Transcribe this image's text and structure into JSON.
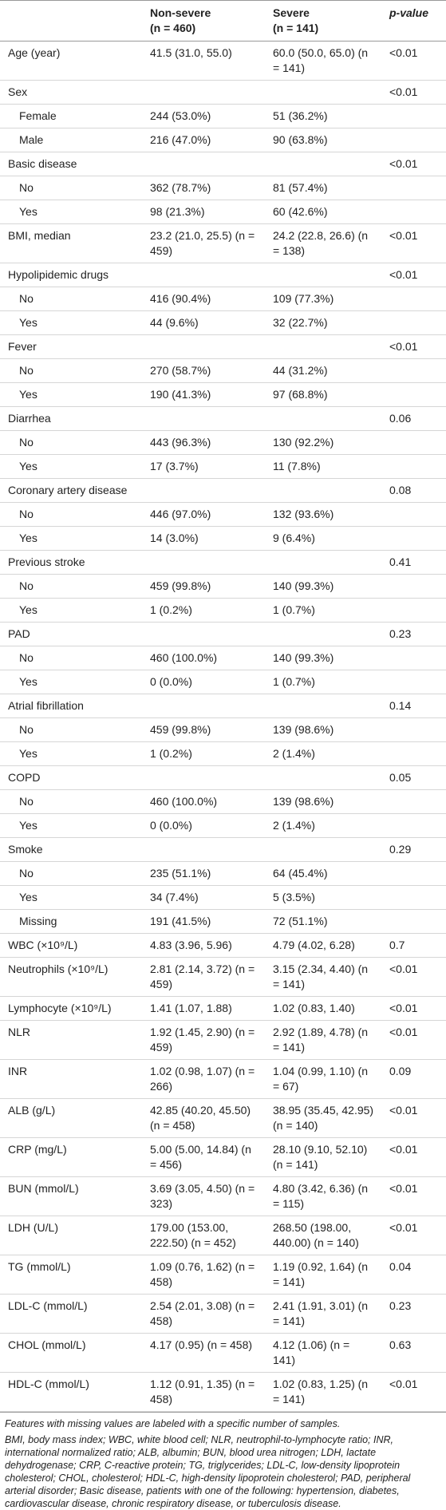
{
  "table": {
    "header": {
      "non_severe": "Non-severe",
      "non_severe_n": "(n = 460)",
      "severe": "Severe",
      "severe_n": "(n = 141)",
      "p_value": "p-value"
    },
    "rows": [
      {
        "label": "Age (year)",
        "non_severe": "41.5 (31.0, 55.0)",
        "severe": "60.0 (50.0, 65.0) (n = 141)",
        "p_value": "<0.01"
      },
      {
        "label": "Sex",
        "p_value": "<0.01",
        "levels": [
          {
            "label": "Female",
            "non_severe": "244 (53.0%)",
            "severe": "51 (36.2%)"
          },
          {
            "label": "Male",
            "non_severe": "216 (47.0%)",
            "severe": "90 (63.8%)"
          }
        ]
      },
      {
        "label": "Basic disease",
        "p_value": "<0.01",
        "levels": [
          {
            "label": "No",
            "non_severe": "362 (78.7%)",
            "severe": "81 (57.4%)"
          },
          {
            "label": "Yes",
            "non_severe": "98 (21.3%)",
            "severe": "60 (42.6%)"
          }
        ]
      },
      {
        "label": "BMI, median",
        "non_severe": "23.2 (21.0, 25.5) (n = 459)",
        "severe": "24.2 (22.8, 26.6) (n = 138)",
        "p_value": "<0.01"
      },
      {
        "label": "Hypolipidemic drugs",
        "p_value": "<0.01",
        "levels": [
          {
            "label": "No",
            "non_severe": "416 (90.4%)",
            "severe": "109 (77.3%)"
          },
          {
            "label": "Yes",
            "non_severe": "44 (9.6%)",
            "severe": "32 (22.7%)"
          }
        ]
      },
      {
        "label": "Fever",
        "p_value": "<0.01",
        "levels": [
          {
            "label": "No",
            "non_severe": "270 (58.7%)",
            "severe": "44 (31.2%)"
          },
          {
            "label": "Yes",
            "non_severe": "190 (41.3%)",
            "severe": "97 (68.8%)"
          }
        ]
      },
      {
        "label": "Diarrhea",
        "p_value": "0.06",
        "levels": [
          {
            "label": "No",
            "non_severe": "443 (96.3%)",
            "severe": "130 (92.2%)"
          },
          {
            "label": "Yes",
            "non_severe": "17 (3.7%)",
            "severe": "11 (7.8%)"
          }
        ]
      },
      {
        "label": "Coronary artery disease",
        "p_value": "0.08",
        "levels": [
          {
            "label": "No",
            "non_severe": "446 (97.0%)",
            "severe": "132 (93.6%)"
          },
          {
            "label": "Yes",
            "non_severe": "14 (3.0%)",
            "severe": "9 (6.4%)"
          }
        ]
      },
      {
        "label": "Previous stroke",
        "p_value": "0.41",
        "levels": [
          {
            "label": "No",
            "non_severe": "459 (99.8%)",
            "severe": "140 (99.3%)"
          },
          {
            "label": "Yes",
            "non_severe": "1 (0.2%)",
            "severe": "1 (0.7%)"
          }
        ]
      },
      {
        "label": "PAD",
        "p_value": "0.23",
        "levels": [
          {
            "label": "No",
            "non_severe": "460 (100.0%)",
            "severe": "140 (99.3%)"
          },
          {
            "label": "Yes",
            "non_severe": "0 (0.0%)",
            "severe": "1 (0.7%)"
          }
        ]
      },
      {
        "label": "Atrial fibrillation",
        "p_value": "0.14",
        "levels": [
          {
            "label": "No",
            "non_severe": "459 (99.8%)",
            "severe": "139 (98.6%)"
          },
          {
            "label": "Yes",
            "non_severe": "1 (0.2%)",
            "severe": "2 (1.4%)"
          }
        ]
      },
      {
        "label": "COPD",
        "p_value": "0.05",
        "levels": [
          {
            "label": "No",
            "non_severe": "460 (100.0%)",
            "severe": "139 (98.6%)"
          },
          {
            "label": "Yes",
            "non_severe": "0 (0.0%)",
            "severe": "2 (1.4%)"
          }
        ]
      },
      {
        "label": "Smoke",
        "p_value": "0.29",
        "levels": [
          {
            "label": "No",
            "non_severe": "235 (51.1%)",
            "severe": "64 (45.4%)"
          },
          {
            "label": "Yes",
            "non_severe": "34 (7.4%)",
            "severe": "5 (3.5%)"
          },
          {
            "label": "Missing",
            "non_severe": "191 (41.5%)",
            "severe": "72 (51.1%)"
          }
        ]
      },
      {
        "label": "WBC (×10⁹/L)",
        "non_severe": "4.83 (3.96, 5.96)",
        "severe": "4.79 (4.02, 6.28)",
        "p_value": "0.7"
      },
      {
        "label": "Neutrophils (×10⁹/L)",
        "non_severe": "2.81 (2.14, 3.72) (n = 459)",
        "severe": "3.15 (2.34, 4.40) (n =  141)",
        "p_value": "<0.01"
      },
      {
        "label": "Lymphocyte (×10⁹/L)",
        "non_severe": "1.41 (1.07, 1.88)",
        "severe": "1.02 (0.83, 1.40)",
        "p_value": "<0.01"
      },
      {
        "label": "NLR",
        "non_severe": "1.92 (1.45, 2.90) (n = 459)",
        "severe": "2.92 (1.89, 4.78) (n = 141)",
        "p_value": "<0.01"
      },
      {
        "label": "INR",
        "non_severe": "1.02 (0.98, 1.07) (n = 266)",
        "severe": "1.04 (0.99, 1.10) (n = 67)",
        "p_value": "0.09"
      },
      {
        "label": "ALB (g/L)",
        "non_severe": "42.85 (40.20, 45.50) (n = 458)",
        "severe": "38.95 (35.45, 42.95) (n = 140)",
        "p_value": "<0.01"
      },
      {
        "label": "CRP (mg/L)",
        "non_severe": "5.00 (5.00, 14.84) (n = 456)",
        "severe": "28.10 (9.10, 52.10) (n = 141)",
        "p_value": "<0.01"
      },
      {
        "label": "BUN (mmol/L)",
        "non_severe": "3.69 (3.05, 4.50) (n = 323)",
        "severe": "4.80 (3.42, 6.36) (n = 115)",
        "p_value": "<0.01"
      },
      {
        "label": "LDH (U/L)",
        "non_severe": "179.00 (153.00, 222.50) (n = 452)",
        "severe": "268.50 (198.00, 440.00) (n = 140)",
        "p_value": "<0.01"
      },
      {
        "label": "TG (mmol/L)",
        "non_severe": "1.09 (0.76, 1.62) (n = 458)",
        "severe": "1.19 (0.92, 1.64) (n = 141)",
        "p_value": "0.04"
      },
      {
        "label": "LDL-C (mmol/L)",
        "non_severe": "2.54 (2.01, 3.08) (n = 458)",
        "severe": "2.41 (1.91, 3.01) (n = 141)",
        "p_value": "0.23"
      },
      {
        "label": "CHOL (mmol/L)",
        "non_severe": "4.17 (0.95) (n = 458)",
        "severe": "4.12 (1.06) (n = 141)",
        "p_value": "0.63"
      },
      {
        "label": "HDL-C (mmol/L)",
        "non_severe": "1.12 (0.91, 1.35) (n = 458)",
        "severe": "1.02 (0.83, 1.25) (n = 141)",
        "p_value": "<0.01"
      }
    ],
    "footnotes": [
      "Features with missing values are labeled with a specific number of samples.",
      "BMI, body mass index; WBC, white blood cell; NLR, neutrophil-to-lymphocyte ratio; INR, international normalized ratio; ALB, albumin; BUN, blood urea nitrogen; LDH, lactate dehydrogenase; CRP, C-reactive protein; TG, triglycerides; LDL-C, low-density lipoprotein cholesterol; CHOL, cholesterol; HDL-C, high-density lipoprotein cholesterol; PAD, peripheral arterial disorder; Basic disease, patients with one of the following: hypertension, diabetes, cardiovascular disease, chronic respiratory disease, or tuberculosis disease."
    ]
  }
}
